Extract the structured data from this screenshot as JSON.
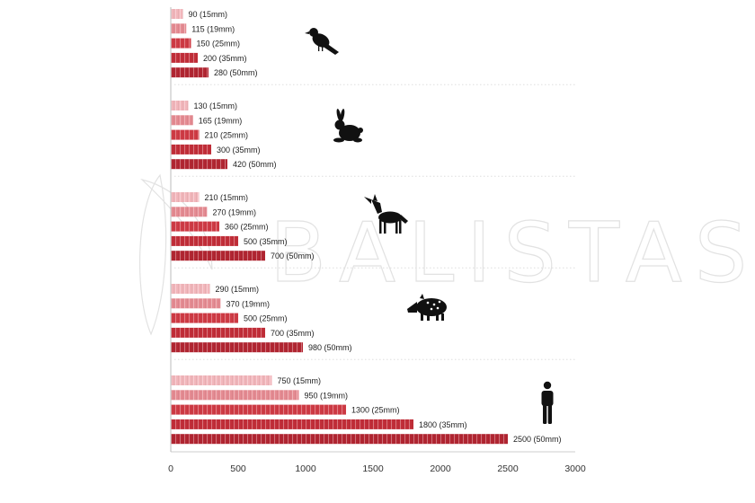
{
  "watermark": {
    "text": "BALISTAS"
  },
  "colors": {
    "light": "#f2b6bb",
    "medium": "#e58b92",
    "dark": "#cf3b45",
    "darker": "#c22e39",
    "darkest": "#b22632",
    "icon": "#111111",
    "axis": "#bbbbbb",
    "separator": "#dddddd"
  },
  "chart_data": {
    "type": "bar",
    "orientation": "horizontal",
    "xlim": [
      0,
      3000
    ],
    "xticks": [
      "0",
      "500",
      "1000",
      "1500",
      "2000",
      "2500",
      "3000"
    ],
    "grid": false,
    "groups": [
      {
        "icon": "bird-icon",
        "bars": [
          {
            "value": 90,
            "label": "90",
            "caliber": "(15mm)"
          },
          {
            "value": 115,
            "label": "115",
            "caliber": "(19mm)"
          },
          {
            "value": 150,
            "label": "150",
            "caliber": "(25mm)"
          },
          {
            "value": 200,
            "label": "200",
            "caliber": "(35mm)"
          },
          {
            "value": 280,
            "label": "280",
            "caliber": "(50mm)"
          }
        ]
      },
      {
        "icon": "rabbit-icon",
        "bars": [
          {
            "value": 130,
            "label": "130",
            "caliber": "(15mm)"
          },
          {
            "value": 165,
            "label": "165",
            "caliber": "(19mm)"
          },
          {
            "value": 210,
            "label": "210",
            "caliber": "(25mm)"
          },
          {
            "value": 300,
            "label": "300",
            "caliber": "(35mm)"
          },
          {
            "value": 420,
            "label": "420",
            "caliber": "(50mm)"
          }
        ]
      },
      {
        "icon": "wolf-icon",
        "bars": [
          {
            "value": 210,
            "label": "210",
            "caliber": "(15mm)"
          },
          {
            "value": 270,
            "label": "270",
            "caliber": "(19mm)"
          },
          {
            "value": 360,
            "label": "360",
            "caliber": "(25mm)"
          },
          {
            "value": 500,
            "label": "500",
            "caliber": "(35mm)"
          },
          {
            "value": 700,
            "label": "700",
            "caliber": "(50mm)"
          }
        ]
      },
      {
        "icon": "boar-icon",
        "bars": [
          {
            "value": 290,
            "label": "290",
            "caliber": "(15mm)"
          },
          {
            "value": 370,
            "label": "370",
            "caliber": "(19mm)"
          },
          {
            "value": 500,
            "label": "500",
            "caliber": "(25mm)"
          },
          {
            "value": 700,
            "label": "700",
            "caliber": "(35mm)"
          },
          {
            "value": 980,
            "label": "980",
            "caliber": "(50mm)"
          }
        ]
      },
      {
        "icon": "person-icon",
        "bars": [
          {
            "value": 750,
            "label": "750",
            "caliber": "(15mm)"
          },
          {
            "value": 950,
            "label": "950",
            "caliber": "(19mm)"
          },
          {
            "value": 1300,
            "label": "1300",
            "caliber": "(25mm)"
          },
          {
            "value": 1800,
            "label": "1800",
            "caliber": "(35mm)"
          },
          {
            "value": 2500,
            "label": "2500",
            "caliber": "(50mm)"
          }
        ]
      }
    ]
  }
}
